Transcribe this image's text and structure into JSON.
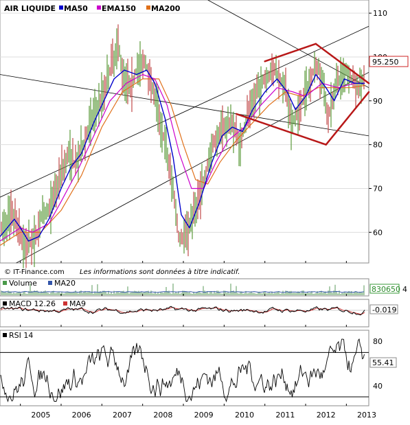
{
  "chart_data": {
    "type": "line",
    "title": "AIR LIQUIDE",
    "legend": [
      {
        "name": "MA50",
        "color": "#0000cc"
      },
      {
        "name": "EMA150",
        "color": "#cc00cc"
      },
      {
        "name": "MA200",
        "color": "#e0701a"
      }
    ],
    "legend_position": "top-left",
    "price_axis": {
      "ticks": [
        60,
        70,
        80,
        90,
        100,
        110
      ],
      "ylim": [
        53,
        113
      ],
      "side": "right"
    },
    "last_price": "95.250",
    "x_years": [
      "2005",
      "2006",
      "2007",
      "2008",
      "2009",
      "2010",
      "2011",
      "2012",
      "2013"
    ],
    "xlim": [
      2004.5,
      2013.55
    ],
    "price_path": [
      [
        2004.5,
        60
      ],
      [
        2004.8,
        64
      ],
      [
        2004.95,
        61
      ],
      [
        2005.1,
        57
      ],
      [
        2005.35,
        58
      ],
      [
        2005.5,
        63
      ],
      [
        2005.75,
        66
      ],
      [
        2006.0,
        74
      ],
      [
        2006.2,
        78
      ],
      [
        2006.35,
        75
      ],
      [
        2006.55,
        80
      ],
      [
        2006.8,
        87
      ],
      [
        2007.0,
        91
      ],
      [
        2007.2,
        97
      ],
      [
        2007.4,
        103
      ],
      [
        2007.5,
        97
      ],
      [
        2007.7,
        93
      ],
      [
        2007.85,
        97
      ],
      [
        2008.05,
        99
      ],
      [
        2008.2,
        95
      ],
      [
        2008.4,
        87
      ],
      [
        2008.55,
        80
      ],
      [
        2008.75,
        70
      ],
      [
        2008.9,
        58
      ],
      [
        2009.0,
        59
      ],
      [
        2009.2,
        63
      ],
      [
        2009.45,
        70
      ],
      [
        2009.7,
        79
      ],
      [
        2009.95,
        84
      ],
      [
        2010.2,
        85
      ],
      [
        2010.4,
        80
      ],
      [
        2010.55,
        86
      ],
      [
        2010.8,
        92
      ],
      [
        2011.0,
        95
      ],
      [
        2011.25,
        97
      ],
      [
        2011.5,
        93
      ],
      [
        2011.65,
        84
      ],
      [
        2011.85,
        88
      ],
      [
        2012.0,
        92
      ],
      [
        2012.25,
        98
      ],
      [
        2012.4,
        96
      ],
      [
        2012.55,
        86
      ],
      [
        2012.75,
        94
      ],
      [
        2013.0,
        97
      ],
      [
        2013.25,
        93
      ],
      [
        2013.45,
        95.25
      ]
    ],
    "ma50_path": [
      [
        2004.5,
        59
      ],
      [
        2004.85,
        63
      ],
      [
        2005.0,
        61
      ],
      [
        2005.2,
        58
      ],
      [
        2005.45,
        59
      ],
      [
        2005.7,
        63
      ],
      [
        2006.0,
        70
      ],
      [
        2006.25,
        75
      ],
      [
        2006.5,
        78
      ],
      [
        2006.8,
        85
      ],
      [
        2007.05,
        90
      ],
      [
        2007.3,
        95
      ],
      [
        2007.55,
        97
      ],
      [
        2007.85,
        96
      ],
      [
        2008.1,
        97
      ],
      [
        2008.3,
        94
      ],
      [
        2008.55,
        86
      ],
      [
        2008.75,
        77
      ],
      [
        2008.95,
        64
      ],
      [
        2009.15,
        61
      ],
      [
        2009.4,
        67
      ],
      [
        2009.7,
        76
      ],
      [
        2009.95,
        82
      ],
      [
        2010.2,
        84
      ],
      [
        2010.45,
        83
      ],
      [
        2010.7,
        88
      ],
      [
        2011.0,
        92
      ],
      [
        2011.3,
        95
      ],
      [
        2011.55,
        92
      ],
      [
        2011.75,
        88
      ],
      [
        2012.0,
        91
      ],
      [
        2012.25,
        96
      ],
      [
        2012.5,
        93
      ],
      [
        2012.7,
        90
      ],
      [
        2012.95,
        95
      ],
      [
        2013.2,
        94
      ],
      [
        2013.45,
        94
      ]
    ],
    "ema150_path": [
      [
        2004.5,
        58
      ],
      [
        2005.0,
        61
      ],
      [
        2005.3,
        60
      ],
      [
        2005.7,
        62
      ],
      [
        2006.0,
        67
      ],
      [
        2006.4,
        74
      ],
      [
        2006.8,
        82
      ],
      [
        2007.2,
        90
      ],
      [
        2007.6,
        94
      ],
      [
        2008.0,
        96
      ],
      [
        2008.3,
        95
      ],
      [
        2008.6,
        89
      ],
      [
        2008.9,
        78
      ],
      [
        2009.2,
        70
      ],
      [
        2009.5,
        70
      ],
      [
        2009.8,
        76
      ],
      [
        2010.1,
        81
      ],
      [
        2010.5,
        84
      ],
      [
        2010.9,
        89
      ],
      [
        2011.3,
        93
      ],
      [
        2011.7,
        92
      ],
      [
        2012.0,
        91
      ],
      [
        2012.4,
        94
      ],
      [
        2012.8,
        93
      ],
      [
        2013.2,
        94
      ],
      [
        2013.45,
        94
      ]
    ],
    "ma200_path": [
      [
        2004.5,
        57
      ],
      [
        2005.0,
        60
      ],
      [
        2005.5,
        60
      ],
      [
        2006.0,
        65
      ],
      [
        2006.5,
        73
      ],
      [
        2007.0,
        84
      ],
      [
        2007.5,
        92
      ],
      [
        2008.0,
        95
      ],
      [
        2008.4,
        95
      ],
      [
        2008.7,
        89
      ],
      [
        2009.0,
        80
      ],
      [
        2009.3,
        72
      ],
      [
        2009.6,
        71
      ],
      [
        2009.9,
        76
      ],
      [
        2010.3,
        81
      ],
      [
        2010.7,
        85
      ],
      [
        2011.1,
        89
      ],
      [
        2011.5,
        92
      ],
      [
        2011.9,
        91
      ],
      [
        2012.3,
        93
      ],
      [
        2012.7,
        93
      ],
      [
        2013.1,
        93
      ],
      [
        2013.45,
        93.5
      ]
    ],
    "copyright": "© IT-Finance.com",
    "disclaimer": "Les informations sont données à titre indicatif.",
    "volume_panel": {
      "legend": [
        {
          "name": "Volume",
          "color": "#4a9a4a"
        },
        {
          "name": "MA20",
          "color": "#3355aa"
        }
      ],
      "value_label": "830650",
      "value_suffix": "4"
    },
    "macd_panel": {
      "legend": [
        {
          "name": "MACD 12.26",
          "color": "#000000"
        },
        {
          "name": "MA9",
          "color": "#cc3333"
        }
      ],
      "value_label": "-0.019"
    },
    "rsi_panel": {
      "legend": [
        {
          "name": "RSI 14",
          "color": "#000000"
        }
      ],
      "ticks": [
        40,
        80
      ],
      "ylim": [
        22,
        90
      ],
      "bands": [
        30,
        70
      ],
      "value_label": "55.41"
    }
  }
}
